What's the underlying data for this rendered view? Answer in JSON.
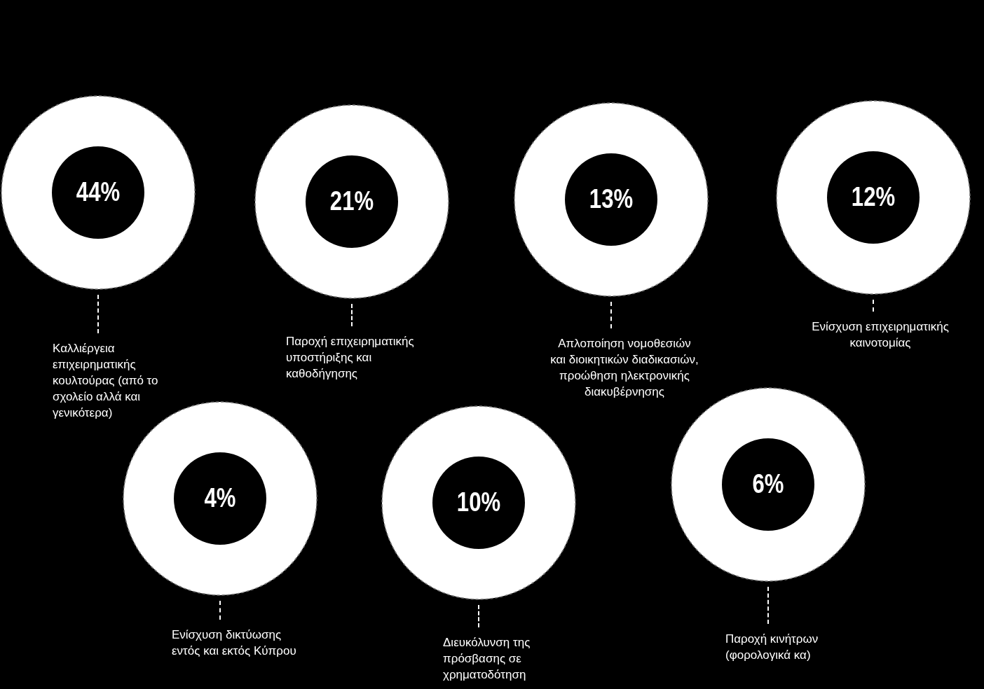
{
  "chart_data": {
    "type": "other",
    "categories": [
      "Καλλιέργεια επιχειρηματικής κουλτούρας (από το σχολείο αλλά και γενικότερα)",
      "Παροχή επιχειρηματικής υποστήριξης και καθοδήγησης",
      "Απλοποίηση νομοθεσιών και διοικητικών διαδικασιών, προώθηση ηλεκτρονικής διακυβέρνησης",
      "Ενίσχυση επιχειρηματικής καινοτομίας",
      "Ενίσχυση δικτύωσης εντός και εκτός Κύπρου",
      "Διευκόλυνση της πρόσβασης σε χρηματοδότηση",
      "Παροχή κινήτρων (φορολογικά κα)"
    ],
    "values": [
      44,
      21,
      13,
      12,
      4,
      10,
      6
    ],
    "value_labels": [
      "44%",
      "21%",
      "13%",
      "12%",
      "4%",
      "10%",
      "6%"
    ]
  }
}
